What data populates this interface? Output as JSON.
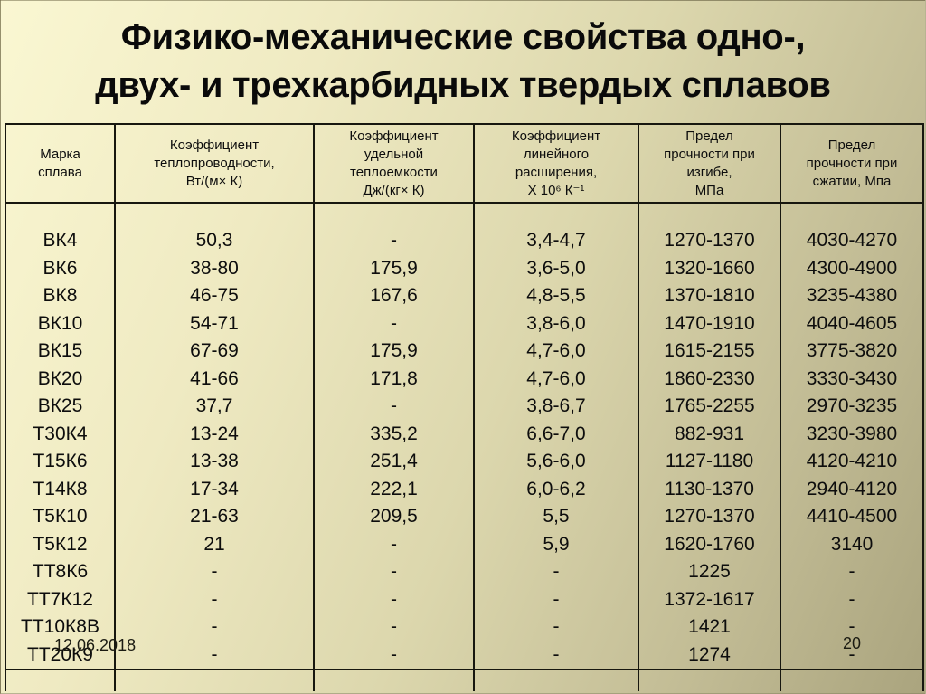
{
  "slide": {
    "title": "Физико-механические свойства одно-,\nдвух- и трехкарбидных твердых сплавов",
    "date": "12.06.2018",
    "page_number": "20"
  },
  "table": {
    "columns": [
      {
        "label": "Марка\nсплава"
      },
      {
        "label": "Коэффициент\nтеплопроводности,\nВт/(м× К)"
      },
      {
        "label": "Коэффициент\nудельной\nтеплоемкости\nДж/(кг× К)"
      },
      {
        "label": "Коэффициент\nлинейного\nрасширения,\nХ 10⁶ К⁻¹"
      },
      {
        "label": "Предел\nпрочности при\nизгибе,\nМПа"
      },
      {
        "label": "Предел\nпрочности при\nсжатии, Мпа"
      }
    ],
    "rows": [
      [
        "ВК4",
        "50,3",
        "-",
        "3,4-4,7",
        "1270-1370",
        "4030-4270"
      ],
      [
        "ВК6",
        "38-80",
        "175,9",
        "3,6-5,0",
        "1320-1660",
        "4300-4900"
      ],
      [
        "ВК8",
        "46-75",
        "167,6",
        "4,8-5,5",
        "1370-1810",
        "3235-4380"
      ],
      [
        "ВК10",
        "54-71",
        "-",
        "3,8-6,0",
        "1470-1910",
        "4040-4605"
      ],
      [
        "ВК15",
        "67-69",
        "175,9",
        "4,7-6,0",
        "1615-2155",
        "3775-3820"
      ],
      [
        "ВК20",
        "41-66",
        "171,8",
        "4,7-6,0",
        "1860-2330",
        "3330-3430"
      ],
      [
        "ВК25",
        "37,7",
        "-",
        "3,8-6,7",
        "1765-2255",
        "2970-3235"
      ],
      [
        "Т30К4",
        "13-24",
        "335,2",
        "6,6-7,0",
        "882-931",
        "3230-3980"
      ],
      [
        "Т15К6",
        "13-38",
        "251,4",
        "5,6-6,0",
        "1127-1180",
        "4120-4210"
      ],
      [
        "Т14К8",
        "17-34",
        "222,1",
        "6,0-6,2",
        "1130-1370",
        "2940-4120"
      ],
      [
        "Т5К10",
        "21-63",
        "209,5",
        "5,5",
        "1270-1370",
        "4410-4500"
      ],
      [
        "Т5К12",
        "21",
        "-",
        "5,9",
        "1620-1760",
        "3140"
      ],
      [
        "ТТ8К6",
        "-",
        "-",
        "-",
        "1225",
        "-"
      ],
      [
        "ТТ7К12",
        "-",
        "-",
        "-",
        "1372-1617",
        "-"
      ],
      [
        "ТТ10К8В",
        "-",
        "-",
        "-",
        "1421",
        "-"
      ],
      [
        "ТТ20К9",
        "-",
        "-",
        "-",
        "1274",
        "-"
      ]
    ]
  },
  "colors": {
    "background_start": "#faf7d2",
    "background_end": "#aaa47e",
    "table_border": "#17170f",
    "text": "#0d0d0d"
  }
}
